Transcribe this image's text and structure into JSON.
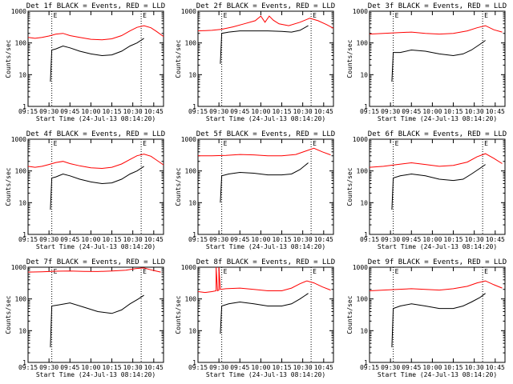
{
  "figure": {
    "background": "#ffffff",
    "axis_color": "#000000",
    "series_colors": {
      "events": "#000000",
      "lld": "#ff0000"
    }
  },
  "chart_data": [
    {
      "type": "line",
      "title": "Det 1f BLACK = Events, RED = LLD",
      "xlabel": "Start Time (24-Jul-13 08:14:20)",
      "ylabel": "Counts/sec",
      "xticks": [
        "09:15",
        "09:30",
        "09:45",
        "10:00",
        "10:15",
        "10:30",
        "10:45"
      ],
      "yticks": [
        "1",
        "10",
        "100",
        "1000"
      ],
      "ylim": [
        1,
        1000
      ],
      "yscale": "log",
      "xlim": [
        "09:15",
        "10:52"
      ],
      "markers": [
        "09:32",
        "10:36"
      ],
      "marker_labels": [
        "E",
        "E"
      ],
      "series": [
        {
          "name": "Events",
          "x": [
            "09:31",
            "09:32",
            "09:35",
            "09:40",
            "09:45",
            "09:52",
            "10:00",
            "10:08",
            "10:15",
            "10:22",
            "10:28",
            "10:33",
            "10:38"
          ],
          "y": [
            6,
            60,
            65,
            80,
            70,
            55,
            45,
            40,
            42,
            55,
            80,
            100,
            140
          ]
        },
        {
          "name": "LLD",
          "x": [
            "09:15",
            "09:20",
            "09:25",
            "09:30",
            "09:35",
            "09:40",
            "09:45",
            "09:52",
            "10:00",
            "10:08",
            "10:15",
            "10:22",
            "10:28",
            "10:33",
            "10:38",
            "10:43",
            "10:47",
            "10:52"
          ],
          "y": [
            150,
            140,
            150,
            165,
            190,
            200,
            170,
            150,
            130,
            125,
            135,
            170,
            240,
            310,
            350,
            300,
            230,
            160
          ]
        }
      ]
    },
    {
      "type": "line",
      "title": "Det 2f BLACK = Events, RED = LLD",
      "xlabel": "Start Time (24-Jul-13 08:14:20)",
      "ylabel": "Counts/sec",
      "xticks": [
        "09:15",
        "09:30",
        "09:45",
        "10:00",
        "10:15",
        "10:30",
        "10:45"
      ],
      "yticks": [
        "1",
        "10",
        "100",
        "1000"
      ],
      "ylim": [
        1,
        1000
      ],
      "yscale": "log",
      "xlim": [
        "09:15",
        "10:52"
      ],
      "markers": [
        "09:32",
        "10:36"
      ],
      "marker_labels": [
        "E",
        "E"
      ],
      "series": [
        {
          "name": "Events",
          "x": [
            "09:31",
            "09:32",
            "09:37",
            "09:45",
            "09:55",
            "10:05",
            "10:15",
            "10:22",
            "10:28",
            "10:34"
          ],
          "y": [
            22,
            200,
            220,
            240,
            240,
            240,
            230,
            220,
            250,
            350
          ]
        },
        {
          "name": "LLD",
          "x": [
            "09:15",
            "09:25",
            "09:32",
            "09:40",
            "09:48",
            "09:56",
            "10:00",
            "10:03",
            "10:06",
            "10:09",
            "10:13",
            "10:20",
            "10:28",
            "10:35",
            "10:41",
            "10:47",
            "10:52"
          ],
          "y": [
            240,
            250,
            270,
            320,
            400,
            500,
            700,
            450,
            700,
            520,
            400,
            350,
            450,
            600,
            500,
            380,
            290
          ]
        }
      ]
    },
    {
      "type": "line",
      "title": "Det 3f BLACK = Events, RED = LLD",
      "xlabel": "Start Time (24-Jul-13 08:14:20)",
      "ylabel": "Counts/sec",
      "xticks": [
        "09:15",
        "09:30",
        "09:45",
        "10:00",
        "10:15",
        "10:30",
        "10:45"
      ],
      "yticks": [
        "1",
        "10",
        "100",
        "1000"
      ],
      "ylim": [
        1,
        1000
      ],
      "yscale": "log",
      "xlim": [
        "09:15",
        "10:52"
      ],
      "markers": [
        "09:32",
        "10:36"
      ],
      "marker_labels": [
        "E",
        "E"
      ],
      "series": [
        {
          "name": "Events",
          "x": [
            "09:31",
            "09:32",
            "09:37",
            "09:45",
            "09:55",
            "10:05",
            "10:15",
            "10:22",
            "10:28",
            "10:34",
            "10:38"
          ],
          "y": [
            6,
            50,
            50,
            60,
            55,
            45,
            40,
            45,
            60,
            90,
            120
          ]
        },
        {
          "name": "LLD",
          "x": [
            "09:15",
            "09:25",
            "09:35",
            "09:45",
            "09:55",
            "10:05",
            "10:15",
            "10:25",
            "10:32",
            "10:38",
            "10:44",
            "10:50"
          ],
          "y": [
            190,
            200,
            210,
            220,
            200,
            190,
            200,
            240,
            300,
            350,
            260,
            220
          ]
        }
      ]
    },
    {
      "type": "line",
      "title": "Det 4f BLACK = Events, RED = LLD",
      "xlabel": "Start Time (24-Jul-13 08:14:20)",
      "ylabel": "Counts/sec",
      "xticks": [
        "09:15",
        "09:30",
        "09:45",
        "10:00",
        "10:15",
        "10:30",
        "10:45"
      ],
      "yticks": [
        "1",
        "10",
        "100",
        "1000"
      ],
      "ylim": [
        1,
        1000
      ],
      "yscale": "log",
      "xlim": [
        "09:15",
        "10:52"
      ],
      "markers": [
        "09:32",
        "10:36"
      ],
      "marker_labels": [
        "E",
        "E"
      ],
      "series": [
        {
          "name": "Events",
          "x": [
            "09:31",
            "09:32",
            "09:35",
            "09:40",
            "09:45",
            "09:52",
            "10:00",
            "10:08",
            "10:15",
            "10:22",
            "10:28",
            "10:33",
            "10:38"
          ],
          "y": [
            6,
            60,
            65,
            80,
            70,
            55,
            45,
            40,
            42,
            55,
            80,
            100,
            140
          ]
        },
        {
          "name": "LLD",
          "x": [
            "09:15",
            "09:20",
            "09:25",
            "09:30",
            "09:35",
            "09:40",
            "09:45",
            "09:52",
            "10:00",
            "10:08",
            "10:15",
            "10:22",
            "10:28",
            "10:33",
            "10:38",
            "10:43",
            "10:47",
            "10:52"
          ],
          "y": [
            140,
            130,
            140,
            160,
            185,
            200,
            170,
            145,
            125,
            120,
            130,
            165,
            230,
            300,
            340,
            290,
            220,
            155
          ]
        }
      ]
    },
    {
      "type": "line",
      "title": "Det 5f BLACK = Events, RED = LLD",
      "xlabel": "Start Time (24-Jul-13 08:14:20)",
      "ylabel": "Counts/sec",
      "xticks": [
        "09:15",
        "09:30",
        "09:45",
        "10:00",
        "10:15",
        "10:30",
        "10:45"
      ],
      "yticks": [
        "1",
        "10",
        "100",
        "1000"
      ],
      "ylim": [
        1,
        1000
      ],
      "yscale": "log",
      "xlim": [
        "09:15",
        "10:52"
      ],
      "markers": [
        "09:32",
        "10:36"
      ],
      "marker_labels": [
        "E",
        "E"
      ],
      "series": [
        {
          "name": "Events",
          "x": [
            "09:31",
            "09:32",
            "09:37",
            "09:45",
            "09:55",
            "10:05",
            "10:15",
            "10:22",
            "10:28",
            "10:34"
          ],
          "y": [
            10,
            70,
            80,
            90,
            85,
            75,
            75,
            80,
            110,
            180
          ]
        },
        {
          "name": "LLD",
          "x": [
            "09:15",
            "09:25",
            "09:35",
            "09:45",
            "09:55",
            "10:05",
            "10:15",
            "10:25",
            "10:32",
            "10:38",
            "10:44",
            "10:50"
          ],
          "y": [
            300,
            300,
            310,
            330,
            320,
            300,
            300,
            330,
            420,
            520,
            400,
            320
          ]
        }
      ]
    },
    {
      "type": "line",
      "title": "Det 6f BLACK = Events, RED = LLD",
      "xlabel": "Start Time (24-Jul-13 08:14:20)",
      "ylabel": "Counts/sec",
      "xticks": [
        "09:15",
        "09:30",
        "09:45",
        "10:00",
        "10:15",
        "10:30",
        "10:45"
      ],
      "yticks": [
        "1",
        "10",
        "100",
        "1000"
      ],
      "ylim": [
        1,
        1000
      ],
      "yscale": "log",
      "xlim": [
        "09:15",
        "10:52"
      ],
      "markers": [
        "09:32",
        "10:36"
      ],
      "marker_labels": [
        "E",
        "E"
      ],
      "series": [
        {
          "name": "Events",
          "x": [
            "09:31",
            "09:32",
            "09:37",
            "09:45",
            "09:55",
            "10:05",
            "10:15",
            "10:22",
            "10:28",
            "10:34",
            "10:38"
          ],
          "y": [
            6,
            60,
            70,
            80,
            70,
            55,
            50,
            55,
            80,
            120,
            160
          ]
        },
        {
          "name": "LLD",
          "x": [
            "09:15",
            "09:25",
            "09:35",
            "09:45",
            "09:55",
            "10:05",
            "10:15",
            "10:25",
            "10:32",
            "10:38",
            "10:44",
            "10:50"
          ],
          "y": [
            130,
            140,
            160,
            180,
            160,
            140,
            150,
            190,
            280,
            350,
            250,
            170
          ]
        }
      ]
    },
    {
      "type": "line",
      "title": "Det 7f BLACK = Events, RED = LLD",
      "xlabel": "Start Time (24-Jul-13 08:14:20)",
      "ylabel": "Counts/sec",
      "xticks": [
        "09:15",
        "09:30",
        "09:45",
        "10:00",
        "10:15",
        "10:30",
        "10:45"
      ],
      "yticks": [
        "1",
        "10",
        "100",
        "1000"
      ],
      "ylim": [
        1,
        1000
      ],
      "yscale": "log",
      "xlim": [
        "09:15",
        "10:52"
      ],
      "markers": [
        "09:32",
        "10:36"
      ],
      "marker_labels": [
        "E",
        "E"
      ],
      "series": [
        {
          "name": "Events",
          "x": [
            "09:31",
            "09:32",
            "09:37",
            "09:45",
            "09:55",
            "10:05",
            "10:15",
            "10:22",
            "10:28",
            "10:34",
            "10:38"
          ],
          "y": [
            3,
            60,
            65,
            75,
            55,
            40,
            35,
            45,
            70,
            100,
            130
          ]
        },
        {
          "name": "LLD",
          "x": [
            "09:15",
            "09:25",
            "09:35",
            "09:45",
            "09:55",
            "10:05",
            "10:15",
            "10:25",
            "10:32",
            "10:38",
            "10:44",
            "10:50"
          ],
          "y": [
            700,
            720,
            750,
            760,
            740,
            730,
            760,
            800,
            900,
            950,
            800,
            700
          ]
        }
      ]
    },
    {
      "type": "line",
      "title": "Det 8f BLACK = Events, RED = LLD",
      "xlabel": "Start Time (24-Jul-13 08:14:20)",
      "ylabel": "Counts/sec",
      "xticks": [
        "09:15",
        "09:30",
        "09:45",
        "10:00",
        "10:15",
        "10:30",
        "10:45"
      ],
      "yticks": [
        "1",
        "10",
        "100",
        "1000"
      ],
      "ylim": [
        1,
        1000
      ],
      "yscale": "log",
      "xlim": [
        "09:15",
        "10:52"
      ],
      "markers": [
        "09:32",
        "10:36"
      ],
      "marker_labels": [
        "E",
        "E"
      ],
      "series": [
        {
          "name": "Events",
          "x": [
            "09:31",
            "09:32",
            "09:37",
            "09:45",
            "09:55",
            "10:05",
            "10:15",
            "10:22",
            "10:28",
            "10:34"
          ],
          "y": [
            8,
            60,
            70,
            80,
            70,
            60,
            60,
            70,
            100,
            150
          ]
        },
        {
          "name": "LLD",
          "x": [
            "09:15",
            "09:20",
            "09:25",
            "09:28",
            "09:28",
            "09:29",
            "09:30",
            "09:30",
            "09:31",
            "09:35",
            "09:45",
            "09:55",
            "10:05",
            "10:15",
            "10:22",
            "10:28",
            "10:33",
            "10:38",
            "10:44",
            "10:50"
          ],
          "y": [
            170,
            160,
            170,
            180,
            1000,
            180,
            190,
            1000,
            200,
            210,
            220,
            200,
            180,
            180,
            220,
            300,
            370,
            320,
            240,
            190
          ]
        }
      ]
    },
    {
      "type": "line",
      "title": "Det 9f BLACK = Events, RED = LLD",
      "xlabel": "Start Time (24-Jul-13 08:14:20)",
      "ylabel": "Counts/sec",
      "xticks": [
        "09:15",
        "09:30",
        "09:45",
        "10:00",
        "10:15",
        "10:30",
        "10:45"
      ],
      "yticks": [
        "1",
        "10",
        "100",
        "1000"
      ],
      "ylim": [
        1,
        1000
      ],
      "yscale": "log",
      "xlim": [
        "09:15",
        "10:52"
      ],
      "markers": [
        "09:32",
        "10:36"
      ],
      "marker_labels": [
        "E",
        "E"
      ],
      "series": [
        {
          "name": "Events",
          "x": [
            "09:31",
            "09:32",
            "09:37",
            "09:45",
            "09:55",
            "10:05",
            "10:15",
            "10:22",
            "10:28",
            "10:34",
            "10:38"
          ],
          "y": [
            3,
            50,
            60,
            70,
            60,
            50,
            50,
            60,
            80,
            110,
            150
          ]
        },
        {
          "name": "LLD",
          "x": [
            "09:15",
            "09:25",
            "09:35",
            "09:45",
            "09:55",
            "10:05",
            "10:15",
            "10:25",
            "10:32",
            "10:38",
            "10:44",
            "10:50"
          ],
          "y": [
            180,
            190,
            200,
            210,
            200,
            190,
            210,
            250,
            320,
            370,
            280,
            220
          ]
        }
      ]
    }
  ]
}
